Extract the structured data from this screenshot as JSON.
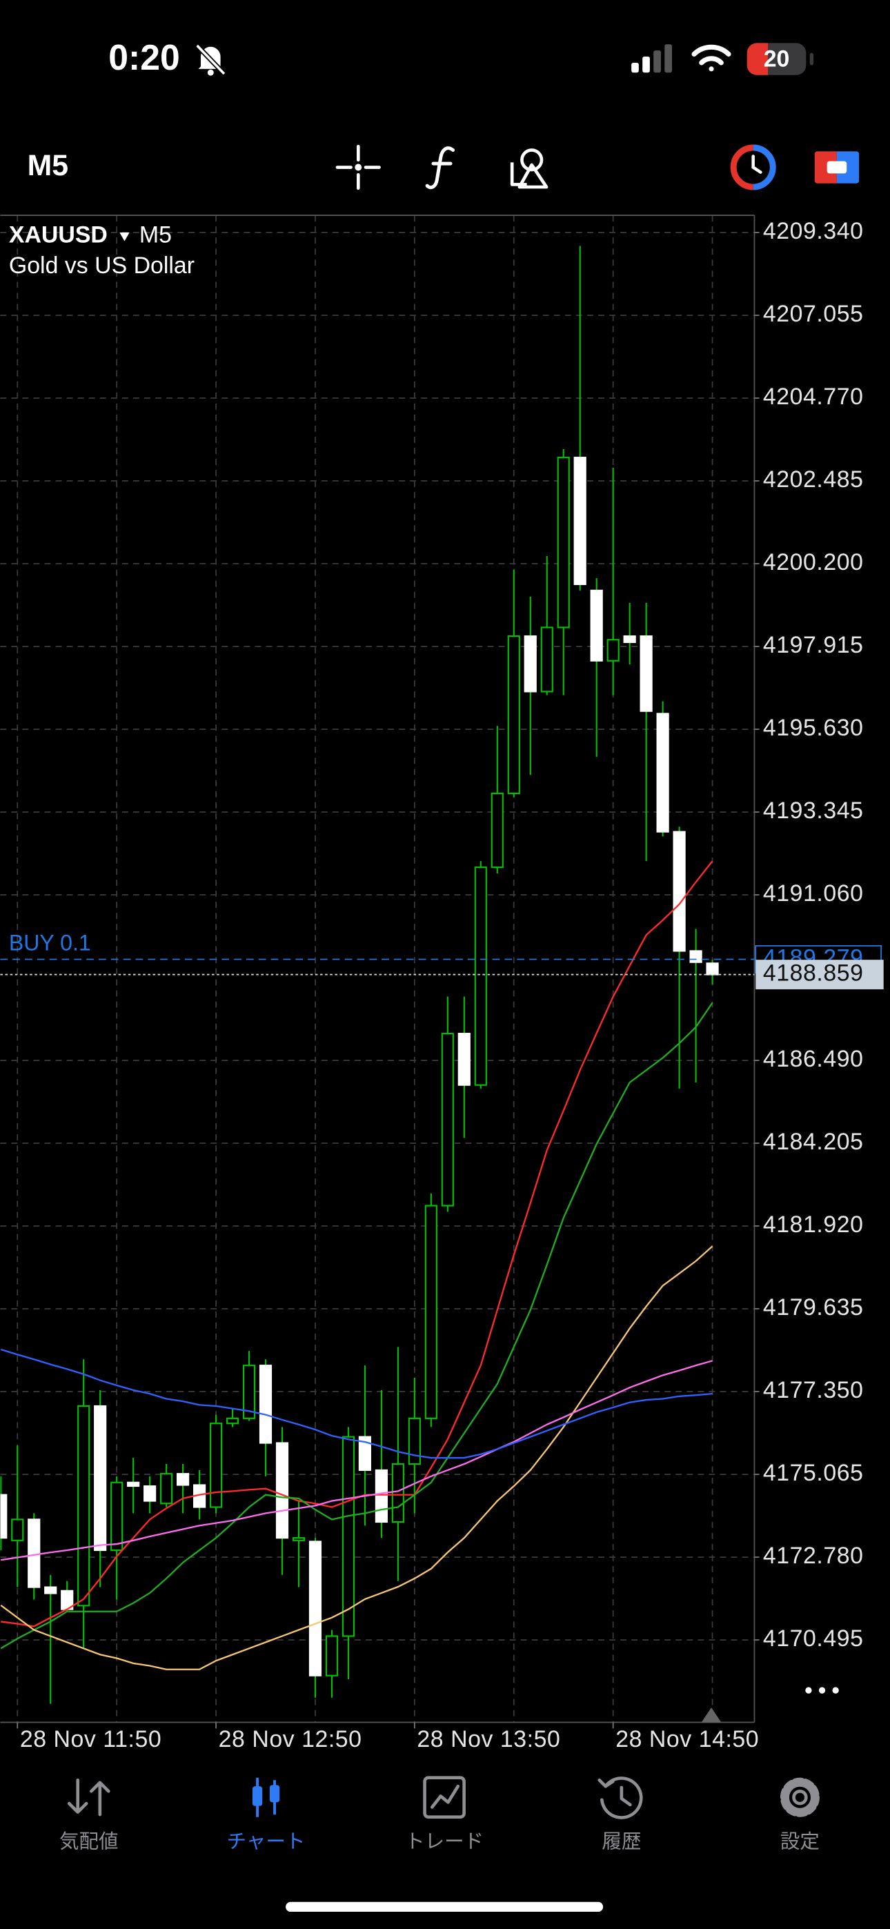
{
  "status_bar": {
    "time": "0:20",
    "battery": "20"
  },
  "toolbar": {
    "timeframe": "M5"
  },
  "chart_data": {
    "type": "candlestick",
    "title": "XAUUSD",
    "timeframe": "M5",
    "subtitle": "Gold vs US Dollar",
    "categories": [
      null,
      "28 Nov 11:50",
      null,
      null,
      null,
      null,
      null,
      null,
      null,
      null,
      null,
      null,
      null,
      "28 Nov 12:50",
      null,
      null,
      null,
      null,
      null,
      null,
      null,
      null,
      null,
      null,
      null,
      "28 Nov 13:50",
      null,
      null,
      null,
      null,
      null,
      null,
      null,
      null,
      null,
      null,
      null,
      "28 Nov 14:50",
      null,
      null,
      null,
      null,
      null,
      null
    ],
    "open": [
      4174.5,
      4173.24,
      4173.82,
      4171.95,
      4171.85,
      4171.44,
      4176.95,
      4172.97,
      4174.84,
      4174.74,
      4174.26,
      4175.08,
      4174.77,
      4174.16,
      4176.47,
      4176.61,
      4178.07,
      4175.93,
      4173.24,
      4173.21,
      4169.51,
      4170.6,
      4176.1,
      4175.18,
      4173.75,
      4175.35,
      4176.61,
      4182.48,
      4187.23,
      4185.81,
      4191.82,
      4193.86,
      4198.2,
      4196.67,
      4198.44,
      4203.13,
      4199.46,
      4197.52,
      4198.2,
      4198.2,
      4196.06,
      4192.8,
      4189.51,
      4189.17
    ],
    "high": [
      4175.01,
      4175.86,
      4173.99,
      4172.29,
      4172.12,
      4178.24,
      4177.39,
      4175.01,
      4175.52,
      4175.01,
      4175.35,
      4175.35,
      4175.18,
      4176.71,
      4176.88,
      4178.47,
      4178.24,
      4176.37,
      4174.33,
      4173.31,
      4170.77,
      4176.37,
      4178.07,
      4177.39,
      4178.58,
      4177.73,
      4182.82,
      4188.25,
      4188.25,
      4191.99,
      4195.72,
      4200.04,
      4199.29,
      4200.41,
      4203.36,
      4208.97,
      4199.8,
      4202.85,
      4199.12,
      4199.12,
      4196.4,
      4192.94,
      4190.12,
      4189.27
    ],
    "low": [
      4172.97,
      4171.95,
      4171.61,
      4168.73,
      4171.28,
      4170.26,
      4171.95,
      4171.61,
      4173.99,
      4173.99,
      4174.16,
      4173.99,
      4173.82,
      4173.99,
      4176.37,
      4176.54,
      4175.01,
      4172.29,
      4171.95,
      4168.9,
      4168.9,
      4169.41,
      4173.65,
      4173.31,
      4172.12,
      4173.99,
      4176.37,
      4182.31,
      4184.35,
      4185.71,
      4191.65,
      4193.75,
      4194.37,
      4196.57,
      4196.57,
      4199.46,
      4194.87,
      4196.57,
      4197.42,
      4191.99,
      4192.67,
      4185.71,
      4185.88,
      4188.59
    ],
    "close": [
      4173.31,
      4173.82,
      4171.95,
      4171.78,
      4171.34,
      4176.95,
      4172.97,
      4174.84,
      4174.74,
      4174.33,
      4175.08,
      4174.77,
      4174.16,
      4176.47,
      4176.61,
      4178.07,
      4175.93,
      4173.31,
      4173.31,
      4169.51,
      4170.6,
      4176.1,
      4175.18,
      4173.75,
      4175.35,
      4176.61,
      4182.48,
      4187.23,
      4185.81,
      4191.82,
      4193.86,
      4198.2,
      4196.67,
      4198.44,
      4203.13,
      4199.63,
      4197.52,
      4198.1,
      4198.03,
      4196.13,
      4192.8,
      4189.51,
      4189.2,
      4188.859
    ],
    "bull_color": "#00c000",
    "bear_color": "#ffffff",
    "series": [
      {
        "color": "#ff2a2a",
        "values": [
          4171.0,
          4170.94,
          4170.87,
          4171.11,
          4171.34,
          4171.62,
          4172.19,
          4172.8,
          4173.31,
          4173.82,
          4174.13,
          4174.4,
          4174.5,
          4174.57,
          4174.6,
          4174.64,
          4174.67,
          4174.5,
          4174.33,
          4174.26,
          4174.16,
          4174.33,
          4174.5,
          4174.5,
          4174.5,
          4174.5,
          4175.25,
          4176.03,
          4177.05,
          4178.07,
          4179.6,
          4181.12,
          4182.55,
          4184.01,
          4185.1,
          4186.22,
          4187.24,
          4188.25,
          4189.1,
          4189.95,
          4190.36,
          4190.8,
          4191.41,
          4191.99
        ]
      },
      {
        "color": "#1fae1f",
        "values": [
          4170.26,
          4170.53,
          4170.77,
          4171.0,
          4171.28,
          4171.28,
          4171.28,
          4171.28,
          4171.51,
          4171.79,
          4172.19,
          4172.63,
          4172.97,
          4173.31,
          4173.72,
          4174.16,
          4174.5,
          4174.43,
          4174.4,
          4174.09,
          4173.82,
          4173.92,
          4173.99,
          4174.09,
          4174.16,
          4174.5,
          4174.84,
          4175.52,
          4176.2,
          4176.88,
          4177.56,
          4178.58,
          4179.6,
          4180.85,
          4182.14,
          4183.16,
          4184.18,
          4185.03,
          4185.88,
          4186.22,
          4186.56,
          4186.96,
          4187.41,
          4188.08
        ]
      },
      {
        "color": "#f7c670",
        "values": [
          4171.45,
          4171.11,
          4170.77,
          4170.6,
          4170.43,
          4170.26,
          4170.09,
          4169.99,
          4169.85,
          4169.78,
          4169.68,
          4169.68,
          4169.68,
          4169.92,
          4170.09,
          4170.26,
          4170.43,
          4170.6,
          4170.77,
          4170.94,
          4171.11,
          4171.34,
          4171.62,
          4171.79,
          4171.96,
          4172.19,
          4172.46,
          4172.91,
          4173.31,
          4173.82,
          4174.33,
          4174.74,
          4175.18,
          4175.76,
          4176.37,
          4177.05,
          4177.73,
          4178.41,
          4179.09,
          4179.7,
          4180.27,
          4180.61,
          4180.95,
          4181.36
        ]
      },
      {
        "color": "#ff6cf0",
        "values": [
          4172.7,
          4172.77,
          4172.84,
          4172.91,
          4172.97,
          4173.04,
          4173.11,
          4173.14,
          4173.24,
          4173.35,
          4173.45,
          4173.55,
          4173.65,
          4173.72,
          4173.79,
          4173.89,
          4173.99,
          4174.06,
          4174.13,
          4174.2,
          4174.33,
          4174.4,
          4174.47,
          4174.54,
          4174.6,
          4174.81,
          4175.01,
          4175.18,
          4175.35,
          4175.55,
          4175.76,
          4175.96,
          4176.2,
          4176.44,
          4176.64,
          4176.85,
          4177.05,
          4177.25,
          4177.46,
          4177.63,
          4177.8,
          4177.93,
          4178.07,
          4178.2
        ]
      },
      {
        "color": "#2f63ff",
        "values": [
          4178.51,
          4178.37,
          4178.24,
          4178.1,
          4177.97,
          4177.83,
          4177.66,
          4177.52,
          4177.39,
          4177.29,
          4177.15,
          4177.08,
          4176.98,
          4176.95,
          4176.88,
          4176.81,
          4176.71,
          4176.57,
          4176.44,
          4176.3,
          4176.13,
          4176.03,
          4175.96,
          4175.83,
          4175.69,
          4175.59,
          4175.52,
          4175.52,
          4175.52,
          4175.62,
          4175.76,
          4175.93,
          4176.1,
          4176.27,
          4176.44,
          4176.61,
          4176.78,
          4176.91,
          4177.05,
          4177.12,
          4177.15,
          4177.22,
          4177.25,
          4177.29
        ]
      }
    ],
    "ylim": [
      4168.22,
      4209.815
    ],
    "yticks": [
      {
        "value": 4209.34,
        "label": "4209.340"
      },
      4207.055,
      {
        "value": 4204.77,
        "label": "4204.770"
      },
      4202.485,
      {
        "value": 4200.2,
        "label": "4200.200"
      },
      4197.915,
      {
        "value": 4195.63,
        "label": "4195.630"
      },
      4193.345,
      {
        "value": 4191.06,
        "label": "4191.060"
      },
      {
        "value": 4186.49,
        "label": "4186.490"
      },
      4184.205,
      {
        "value": 4181.92,
        "label": "4181.920"
      },
      4179.635,
      {
        "value": 4177.35,
        "label": "4177.350"
      },
      4175.065,
      {
        "value": 4172.78,
        "label": "4172.780"
      },
      4170.495
    ],
    "grid": true,
    "order": {
      "label": "BUY 0.1",
      "price": 4189.279,
      "color": "#1f78e6"
    },
    "current_price": 4188.859
  },
  "tab_bar": {
    "tabs": [
      "気配値",
      "チャート",
      "トレード",
      "履歴",
      "設定"
    ],
    "active": 1,
    "active_color": "#2d7cf6",
    "color": "#8e8e93"
  }
}
